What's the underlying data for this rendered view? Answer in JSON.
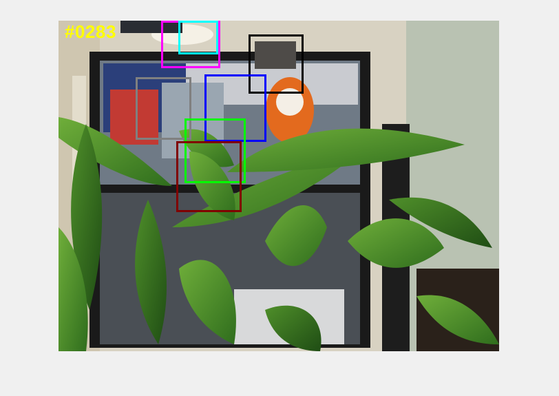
{
  "frame": {
    "label": "#0283",
    "label_color": "#ffff00"
  },
  "boxes": [
    {
      "id": "box-magenta",
      "color": "#ff00ff"
    },
    {
      "id": "box-cyan",
      "color": "#00ffff"
    },
    {
      "id": "box-black",
      "color": "#000000"
    },
    {
      "id": "box-gray",
      "color": "#808080"
    },
    {
      "id": "box-blue",
      "color": "#0000ff"
    },
    {
      "id": "box-green",
      "color": "#00ff00"
    },
    {
      "id": "box-darkred",
      "color": "#800000"
    }
  ]
}
